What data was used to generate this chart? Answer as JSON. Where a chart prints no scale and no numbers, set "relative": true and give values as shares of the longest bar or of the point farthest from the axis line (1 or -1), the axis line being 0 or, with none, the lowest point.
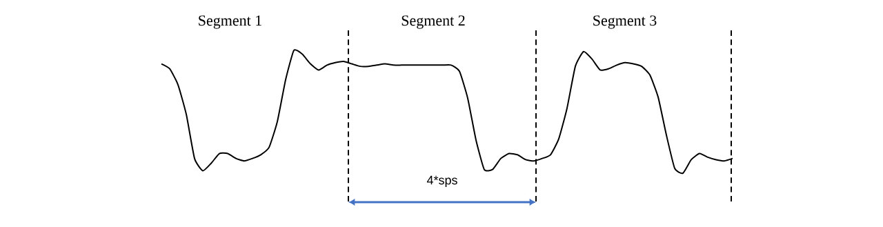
{
  "chart_data": {
    "type": "line",
    "relative": true,
    "categories": [
      null,
      null,
      null,
      null,
      null,
      null,
      null,
      null,
      null,
      null,
      null,
      null,
      null,
      null,
      null,
      null,
      null,
      null,
      null,
      null,
      null,
      null,
      null,
      null,
      null,
      null,
      null,
      null,
      null,
      null,
      null,
      null,
      null,
      null,
      null,
      null,
      null,
      null,
      null,
      null,
      null,
      null,
      null,
      null,
      null,
      null,
      null,
      null,
      null,
      null,
      null,
      null,
      null,
      null,
      null,
      null,
      null,
      null,
      null,
      null,
      null,
      null,
      null,
      null,
      null,
      null,
      null,
      null,
      null,
      null
    ],
    "values": [
      0.89,
      0.85,
      0.72,
      0.48,
      0.12,
      0.02,
      0.08,
      0.16,
      0.16,
      0.12,
      0.1,
      0.12,
      0.15,
      0.21,
      0.42,
      0.76,
      1.0,
      0.97,
      0.89,
      0.84,
      0.88,
      0.9,
      0.91,
      0.89,
      0.87,
      0.87,
      0.88,
      0.89,
      0.88,
      0.88,
      0.88,
      0.88,
      0.88,
      0.88,
      0.88,
      0.88,
      0.83,
      0.61,
      0.27,
      0.03,
      0.03,
      0.12,
      0.16,
      0.15,
      0.11,
      0.1,
      0.12,
      0.15,
      0.28,
      0.53,
      0.87,
      0.99,
      0.93,
      0.84,
      0.85,
      0.88,
      0.9,
      0.89,
      0.87,
      0.8,
      0.62,
      0.31,
      0.04,
      0.0,
      0.11,
      0.16,
      0.13,
      0.11,
      0.1,
      0.12
    ],
    "color": "#000000",
    "annotations": [
      "Segment 1",
      "Segment 2",
      "Segment 3",
      "4*sps"
    ]
  }
}
